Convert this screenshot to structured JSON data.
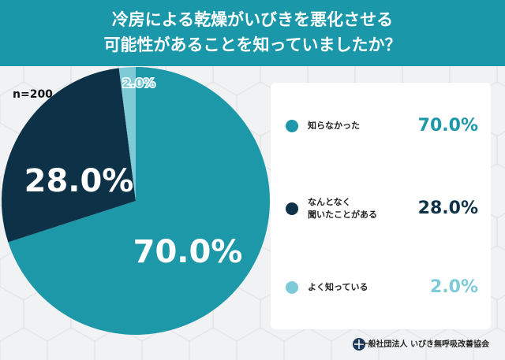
{
  "chart_data": {
    "type": "pie",
    "title": "冷房による乾燥がいびきを悪化させる\n可能性があることを知っていましたか？",
    "annotation": "n=200",
    "categories": [
      "知らなかった",
      "なんとなく\n聞いたことがある",
      "よく知っている"
    ],
    "values": [
      70.0,
      28.0,
      2.0
    ],
    "value_labels": [
      "70.0%",
      "28.0%",
      "2.0%"
    ],
    "colors": [
      "#1d98a9",
      "#0d3248",
      "#7ecbd7"
    ],
    "source": "一般社団法人 いびき無呼吸改善協会"
  }
}
